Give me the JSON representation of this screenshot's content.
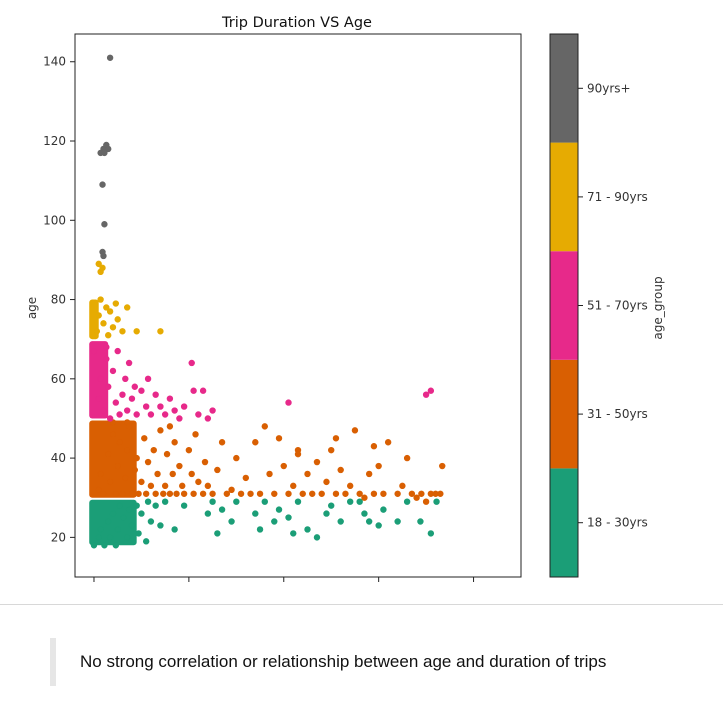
{
  "chart_data": {
    "type": "scatter",
    "title": "Trip Duration VS Age",
    "xlabel": "",
    "ylabel": "age",
    "xlim": [
      -0.2,
      4.5
    ],
    "ylim": [
      10,
      147
    ],
    "yticks": [
      20,
      40,
      60,
      80,
      100,
      120,
      140
    ],
    "xticks": [
      0,
      1,
      2,
      3,
      4
    ],
    "grid": false,
    "colorbar": {
      "label": "age_group",
      "categories": [
        {
          "name": "18 - 30yrs",
          "color": "#1b9e77"
        },
        {
          "name": "31 - 50yrs",
          "color": "#d95f02"
        },
        {
          "name": "51 - 70yrs",
          "color": "#e7298a"
        },
        {
          "name": "71 - 90yrs",
          "color": "#e6ab02"
        },
        {
          "name": "90yrs+",
          "color": "#666666"
        }
      ]
    },
    "series": [
      {
        "color": "#1b9e77",
        "points": [
          [
            0.55,
            18
          ],
          [
            0.6,
            20
          ],
          [
            0.62,
            22
          ],
          [
            0.66,
            18
          ],
          [
            0.7,
            24
          ],
          [
            0.72,
            20
          ],
          [
            0.75,
            26
          ],
          [
            0.78,
            18
          ],
          [
            0.8,
            22
          ],
          [
            0.82,
            28
          ],
          [
            0.86,
            25
          ],
          [
            0.9,
            20
          ],
          [
            0.92,
            27
          ],
          [
            0.95,
            23
          ],
          [
            1.0,
            28
          ],
          [
            1.02,
            21
          ],
          [
            1.05,
            26
          ],
          [
            1.1,
            19
          ],
          [
            1.12,
            29
          ],
          [
            1.15,
            24
          ],
          [
            1.2,
            28
          ],
          [
            1.25,
            23
          ],
          [
            1.3,
            29
          ],
          [
            1.4,
            22
          ],
          [
            1.5,
            28
          ],
          [
            1.75,
            26
          ],
          [
            1.8,
            29
          ],
          [
            1.85,
            21
          ],
          [
            1.9,
            27
          ],
          [
            2.0,
            24
          ],
          [
            2.05,
            29
          ],
          [
            2.25,
            26
          ],
          [
            2.3,
            22
          ],
          [
            2.35,
            29
          ],
          [
            2.45,
            24
          ],
          [
            2.5,
            27
          ],
          [
            2.6,
            25
          ],
          [
            2.65,
            21
          ],
          [
            2.7,
            29
          ],
          [
            2.8,
            22
          ],
          [
            2.9,
            20
          ],
          [
            3.0,
            26
          ],
          [
            3.05,
            28
          ],
          [
            3.15,
            24
          ],
          [
            3.25,
            29
          ],
          [
            3.35,
            29
          ],
          [
            3.4,
            26
          ],
          [
            3.45,
            24
          ],
          [
            3.55,
            23
          ],
          [
            3.6,
            27
          ],
          [
            3.75,
            24
          ],
          [
            3.85,
            29
          ],
          [
            3.99,
            24
          ],
          [
            4.1,
            21
          ],
          [
            4.16,
            29
          ]
        ]
      },
      {
        "color": "#d95f02",
        "points": [
          [
            0.6,
            32
          ],
          [
            0.62,
            36
          ],
          [
            0.65,
            31
          ],
          [
            0.7,
            41
          ],
          [
            0.72,
            34
          ],
          [
            0.75,
            46
          ],
          [
            0.78,
            31
          ],
          [
            0.8,
            38
          ],
          [
            0.82,
            44
          ],
          [
            0.85,
            31
          ],
          [
            0.88,
            35
          ],
          [
            0.9,
            42
          ],
          [
            0.92,
            48
          ],
          [
            0.95,
            31
          ],
          [
            0.98,
            37
          ],
          [
            1.0,
            40
          ],
          [
            1.02,
            31
          ],
          [
            1.05,
            34
          ],
          [
            1.08,
            45
          ],
          [
            1.1,
            31
          ],
          [
            1.12,
            39
          ],
          [
            1.15,
            33
          ],
          [
            1.18,
            42
          ],
          [
            1.2,
            31
          ],
          [
            1.22,
            36
          ],
          [
            1.25,
            47
          ],
          [
            1.28,
            31
          ],
          [
            1.3,
            33
          ],
          [
            1.32,
            41
          ],
          [
            1.35,
            31
          ],
          [
            1.38,
            36
          ],
          [
            1.4,
            44
          ],
          [
            1.42,
            31
          ],
          [
            1.45,
            38
          ],
          [
            1.48,
            33
          ],
          [
            1.5,
            31
          ],
          [
            1.55,
            42
          ],
          [
            1.58,
            36
          ],
          [
            1.6,
            31
          ],
          [
            1.62,
            46
          ],
          [
            1.65,
            34
          ],
          [
            1.7,
            31
          ],
          [
            1.72,
            39
          ],
          [
            1.75,
            33
          ],
          [
            1.8,
            31
          ],
          [
            1.85,
            37
          ],
          [
            1.9,
            44
          ],
          [
            1.95,
            31
          ],
          [
            2.0,
            32
          ],
          [
            2.05,
            40
          ],
          [
            2.1,
            31
          ],
          [
            2.15,
            35
          ],
          [
            2.2,
            31
          ],
          [
            2.25,
            44
          ],
          [
            2.3,
            31
          ],
          [
            2.35,
            48
          ],
          [
            2.4,
            36
          ],
          [
            2.45,
            31
          ],
          [
            2.5,
            45
          ],
          [
            2.55,
            38
          ],
          [
            2.6,
            31
          ],
          [
            2.65,
            33
          ],
          [
            2.7,
            42
          ],
          [
            2.75,
            31
          ],
          [
            2.8,
            36
          ],
          [
            2.85,
            31
          ],
          [
            2.9,
            39
          ],
          [
            2.95,
            31
          ],
          [
            3.0,
            34
          ],
          [
            3.05,
            42
          ],
          [
            3.1,
            31
          ],
          [
            3.15,
            37
          ],
          [
            3.2,
            31
          ],
          [
            3.25,
            33
          ],
          [
            3.3,
            47
          ],
          [
            3.35,
            31
          ],
          [
            3.4,
            30
          ],
          [
            3.45,
            36
          ],
          [
            3.5,
            31
          ],
          [
            3.55,
            38
          ],
          [
            3.6,
            31
          ],
          [
            3.65,
            44
          ],
          [
            3.75,
            31
          ],
          [
            3.8,
            33
          ],
          [
            3.9,
            31
          ],
          [
            3.95,
            30
          ],
          [
            4.0,
            31
          ],
          [
            4.05,
            29
          ],
          [
            4.1,
            31
          ],
          [
            4.15,
            31
          ],
          [
            4.2,
            31
          ],
          [
            4.22,
            38
          ],
          [
            3.5,
            43
          ],
          [
            3.1,
            45
          ],
          [
            2.7,
            41
          ],
          [
            3.85,
            40
          ],
          [
            0.9,
            49
          ],
          [
            1.35,
            48
          ],
          [
            0.75,
            49
          ]
        ]
      },
      {
        "color": "#e7298a",
        "points": [
          [
            0.6,
            55
          ],
          [
            0.62,
            60
          ],
          [
            0.65,
            52
          ],
          [
            0.68,
            65
          ],
          [
            0.7,
            58
          ],
          [
            0.72,
            50
          ],
          [
            0.75,
            62
          ],
          [
            0.78,
            54
          ],
          [
            0.8,
            67
          ],
          [
            0.82,
            51
          ],
          [
            0.85,
            56
          ],
          [
            0.88,
            60
          ],
          [
            0.9,
            52
          ],
          [
            0.92,
            64
          ],
          [
            0.95,
            55
          ],
          [
            0.98,
            58
          ],
          [
            1.0,
            51
          ],
          [
            1.05,
            57
          ],
          [
            1.1,
            53
          ],
          [
            1.12,
            60
          ],
          [
            1.15,
            51
          ],
          [
            1.2,
            56
          ],
          [
            1.25,
            53
          ],
          [
            1.3,
            51
          ],
          [
            1.35,
            55
          ],
          [
            1.4,
            52
          ],
          [
            1.45,
            50
          ],
          [
            1.5,
            53
          ],
          [
            1.58,
            64
          ],
          [
            1.6,
            57
          ],
          [
            1.65,
            51
          ],
          [
            1.7,
            57
          ],
          [
            1.75,
            50
          ],
          [
            1.8,
            52
          ],
          [
            0.68,
            68
          ],
          [
            0.55,
            67
          ],
          [
            2.6,
            54
          ],
          [
            4.05,
            56
          ],
          [
            4.1,
            57
          ]
        ]
      },
      {
        "color": "#e6ab02",
        "points": [
          [
            0.58,
            72
          ],
          [
            0.6,
            76
          ],
          [
            0.62,
            80
          ],
          [
            0.65,
            74
          ],
          [
            0.68,
            78
          ],
          [
            0.7,
            71
          ],
          [
            0.72,
            77
          ],
          [
            0.75,
            73
          ],
          [
            0.78,
            79
          ],
          [
            0.8,
            75
          ],
          [
            0.85,
            72
          ],
          [
            0.9,
            78
          ],
          [
            1.0,
            72
          ],
          [
            1.25,
            72
          ],
          [
            0.62,
            87
          ],
          [
            0.6,
            89
          ],
          [
            0.64,
            88
          ]
        ]
      },
      {
        "color": "#666666",
        "points": [
          [
            0.62,
            117
          ],
          [
            0.65,
            118
          ],
          [
            0.68,
            119
          ],
          [
            0.7,
            118
          ],
          [
            0.66,
            117
          ],
          [
            0.64,
            109
          ],
          [
            0.66,
            99
          ],
          [
            0.64,
            92
          ],
          [
            0.65,
            91
          ],
          [
            0.72,
            141
          ]
        ]
      }
    ]
  },
  "caption": "No strong correlation or relationship between age and duration of trips"
}
